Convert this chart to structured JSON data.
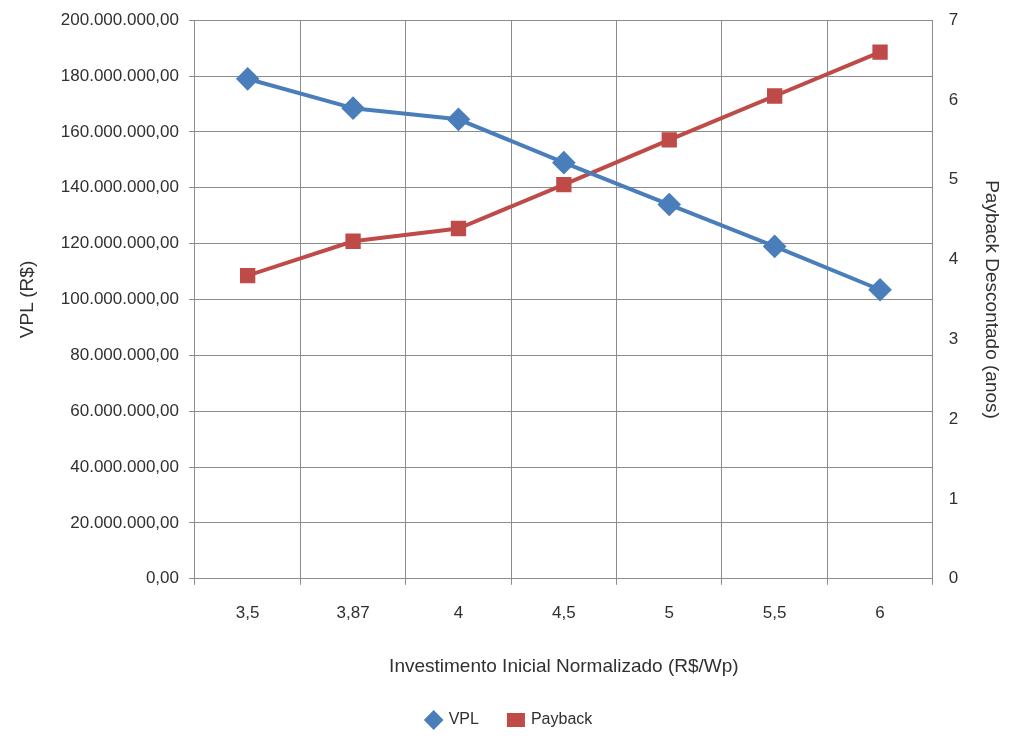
{
  "chart_data": {
    "type": "line",
    "xlabel": "Investimento Inicial Normalizado (R$/Wp)",
    "ylabel": "VPL (R$)",
    "y2label": "Payback Descontado (anos)",
    "categories": [
      "3,5",
      "3,87",
      "4",
      "4,5",
      "5",
      "5,5",
      "6"
    ],
    "series": [
      {
        "name": "VPL",
        "color": "#4a7ebb",
        "marker": "diamond",
        "values": [
          179000000,
          168500000,
          164500000,
          149000000,
          134000000,
          119000000,
          103500000
        ]
      },
      {
        "name": "Payback",
        "color": "#be4b48",
        "marker": "square",
        "axis": "y2",
        "values": [
          3.8,
          4.23,
          4.39,
          4.94,
          5.5,
          6.05,
          6.6
        ]
      }
    ],
    "ylim": [
      0,
      200000000
    ],
    "yticks": [
      {
        "value": 0,
        "label": "0,00"
      },
      {
        "value": 20000000,
        "label": "20.000.000,00"
      },
      {
        "value": 40000000,
        "label": "40.000.000,00"
      },
      {
        "value": 60000000,
        "label": "60.000.000,00"
      },
      {
        "value": 80000000,
        "label": "80.000.000,00"
      },
      {
        "value": 100000000,
        "label": "100.000.000,00"
      },
      {
        "value": 120000000,
        "label": "120.000.000,00"
      },
      {
        "value": 140000000,
        "label": "140.000.000,00"
      },
      {
        "value": 160000000,
        "label": "160.000.000,00"
      },
      {
        "value": 180000000,
        "label": "180.000.000,00"
      },
      {
        "value": 200000000,
        "label": "200.000.000,00"
      }
    ],
    "y2lim": [
      0,
      7
    ],
    "y2ticks": [
      0,
      1,
      2,
      3,
      4,
      5,
      6,
      7
    ],
    "grid": true,
    "legend": "bottom",
    "line_style": "solid"
  }
}
